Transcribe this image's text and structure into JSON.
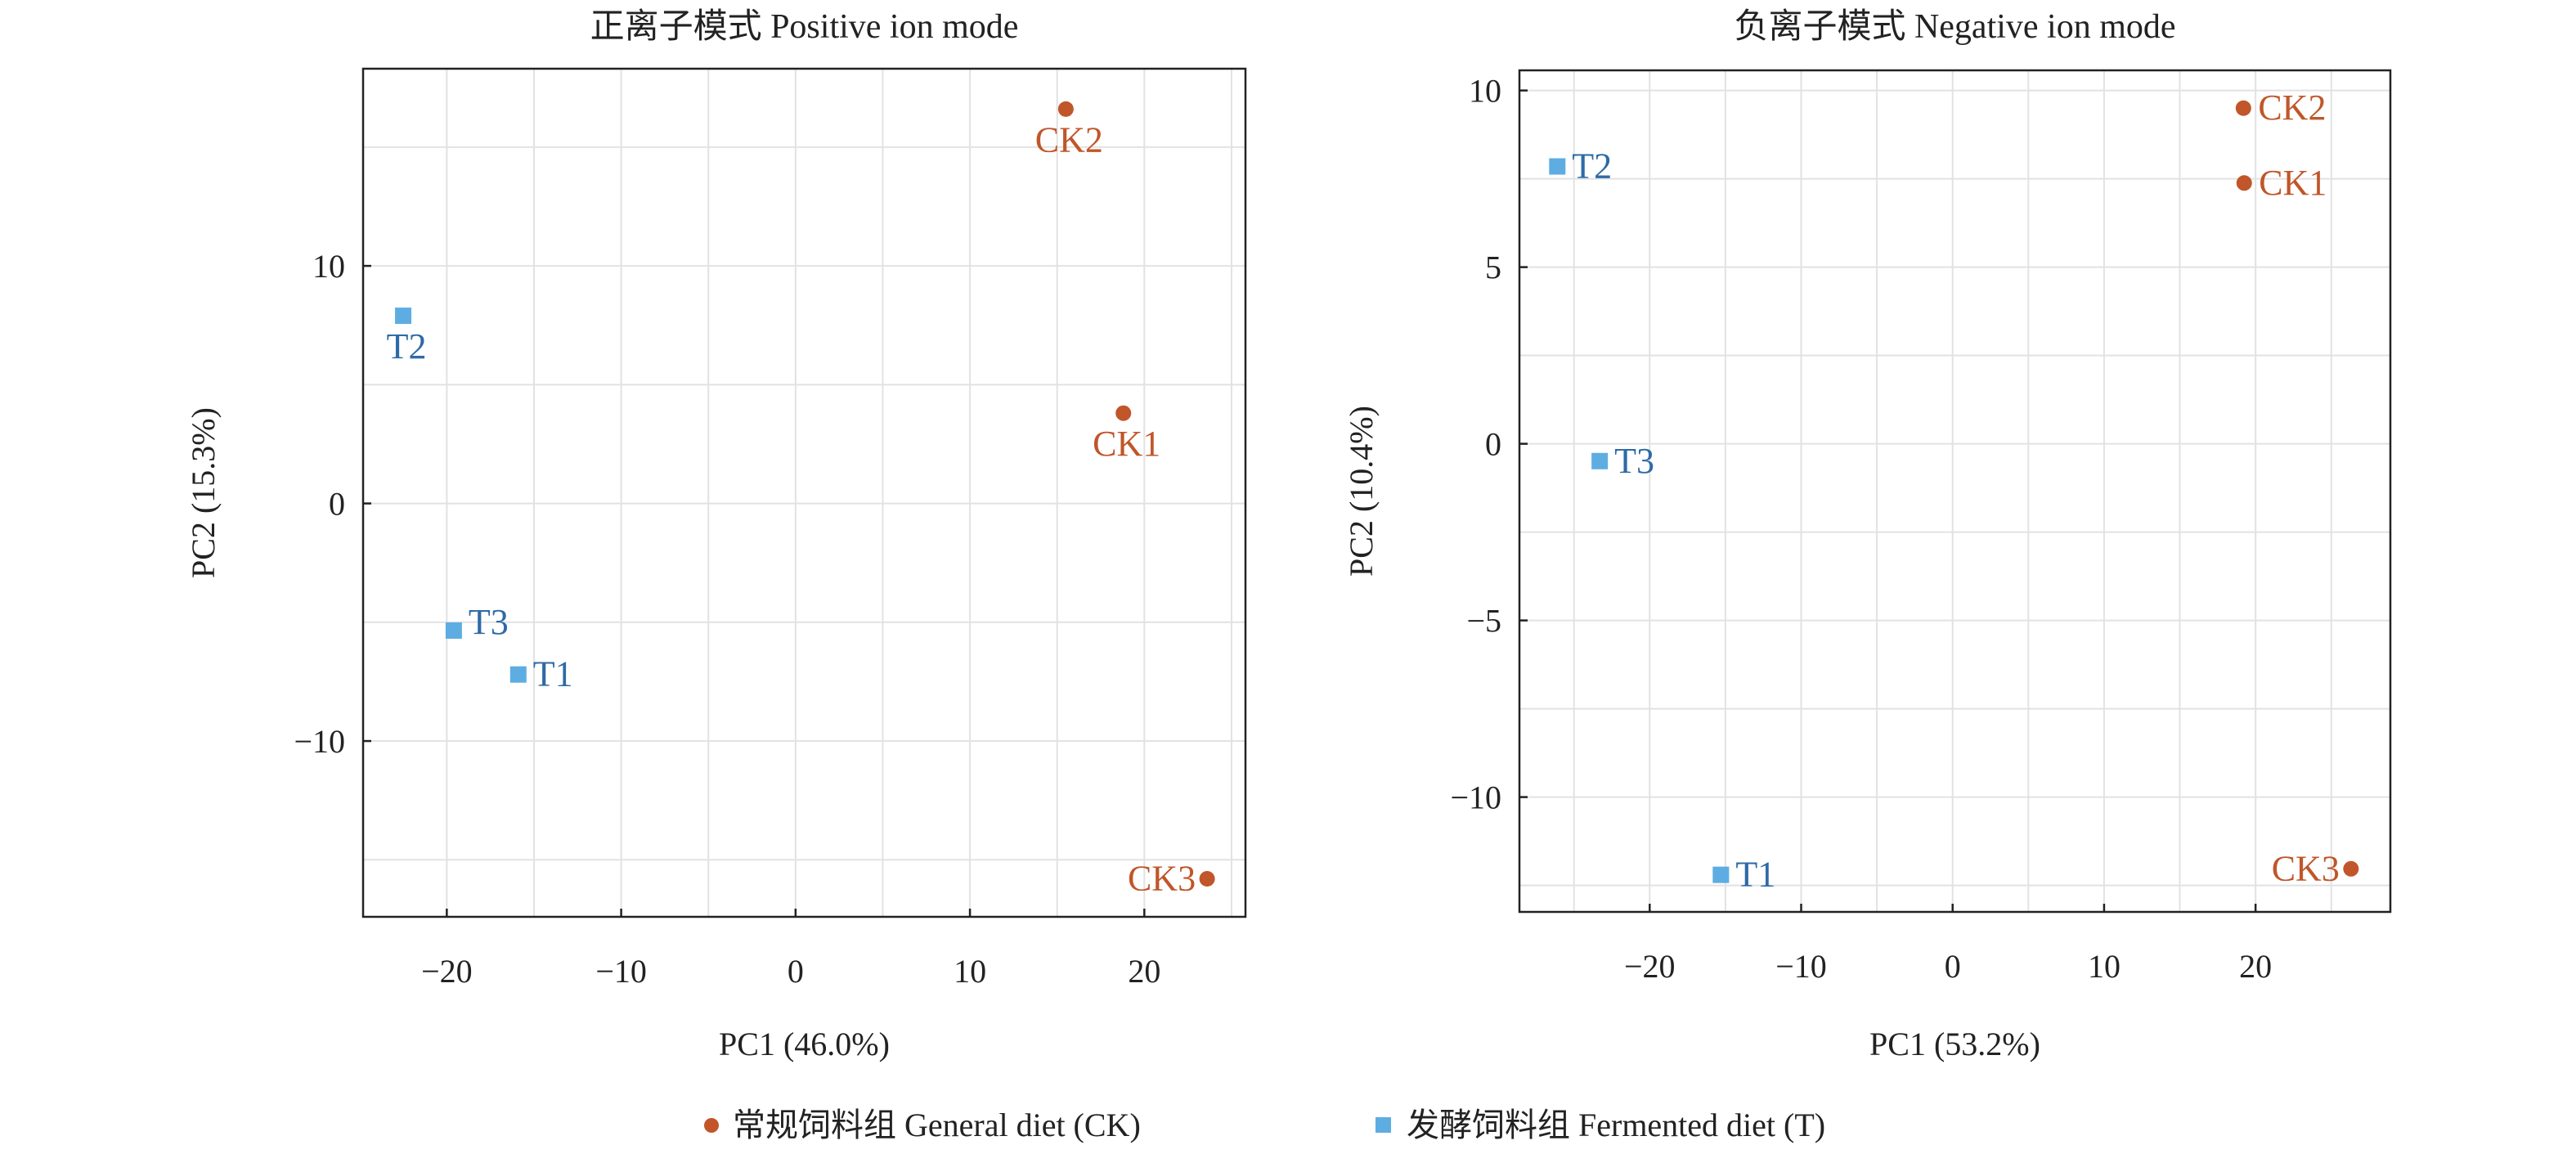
{
  "colors": {
    "ck": "#c0562a",
    "t_marker": "#5dade2",
    "t_label": "#2e6aa6",
    "grid": "#e2e2e2",
    "axis": "#222222"
  },
  "legend": {
    "items": [
      {
        "label": "常规饲料组 General diet (CK)",
        "group": "ck",
        "marker": "circle"
      },
      {
        "label": "发酵饲料组 Fermented diet (T)",
        "group": "t",
        "marker": "square"
      }
    ],
    "placement": "bottom-center"
  },
  "chart_data": [
    {
      "type": "scatter",
      "title": "正离子模式 Positive ion mode",
      "xlabel": "PC1 (46.0%)",
      "ylabel": "PC2 (15.3%)",
      "xlim": [
        -24.8,
        25.8
      ],
      "ylim": [
        -17.4,
        18.3
      ],
      "xticks": [
        -20,
        -10,
        0,
        10,
        20
      ],
      "xtick_labels": [
        "−20",
        "−10",
        "0",
        "10",
        "20"
      ],
      "yticks": [
        -10,
        0,
        10
      ],
      "ytick_labels": [
        "−10",
        "0",
        "10"
      ],
      "xgrid_step": 5,
      "ygrid_step": 5,
      "grid": true,
      "points": [
        {
          "label": "CK2",
          "group": "ck",
          "x": 15.5,
          "y": 16.6,
          "label_pos": "below"
        },
        {
          "label": "CK1",
          "group": "ck",
          "x": 18.8,
          "y": 3.8,
          "label_pos": "below"
        },
        {
          "label": "CK3",
          "group": "ck",
          "x": 23.6,
          "y": -15.8,
          "label_pos": "left"
        },
        {
          "label": "T2",
          "group": "t",
          "x": -22.5,
          "y": 7.9,
          "label_pos": "below"
        },
        {
          "label": "T3",
          "group": "t",
          "x": -19.6,
          "y": -5.35,
          "label_pos": "right-up"
        },
        {
          "label": "T1",
          "group": "t",
          "x": -15.9,
          "y": -7.2,
          "label_pos": "right"
        }
      ]
    },
    {
      "type": "scatter",
      "title": "负离子模式 Negative ion mode",
      "xlabel": "PC1 (53.2%)",
      "ylabel": "PC2 (10.4%)",
      "xlim": [
        -28.6,
        28.9
      ],
      "ylim": [
        -13.25,
        10.57
      ],
      "xticks": [
        -20,
        -10,
        0,
        10,
        20
      ],
      "xtick_labels": [
        "−20",
        "−10",
        "0",
        "10",
        "20"
      ],
      "yticks": [
        -10,
        -5,
        0,
        5,
        10
      ],
      "ytick_labels": [
        "−10",
        "−5",
        "0",
        "5",
        "10"
      ],
      "xgrid_step": 5,
      "ygrid_step": 2.5,
      "grid": true,
      "points": [
        {
          "label": "CK2",
          "group": "ck",
          "x": 19.2,
          "y": 9.5,
          "label_pos": "right"
        },
        {
          "label": "CK1",
          "group": "ck",
          "x": 19.25,
          "y": 7.38,
          "label_pos": "right"
        },
        {
          "label": "CK3",
          "group": "ck",
          "x": 26.3,
          "y": -12.03,
          "label_pos": "left"
        },
        {
          "label": "T2",
          "group": "t",
          "x": -26.1,
          "y": 7.85,
          "label_pos": "right"
        },
        {
          "label": "T3",
          "group": "t",
          "x": -23.3,
          "y": -0.49,
          "label_pos": "right"
        },
        {
          "label": "T1",
          "group": "t",
          "x": -15.3,
          "y": -12.2,
          "label_pos": "right"
        }
      ]
    }
  ]
}
